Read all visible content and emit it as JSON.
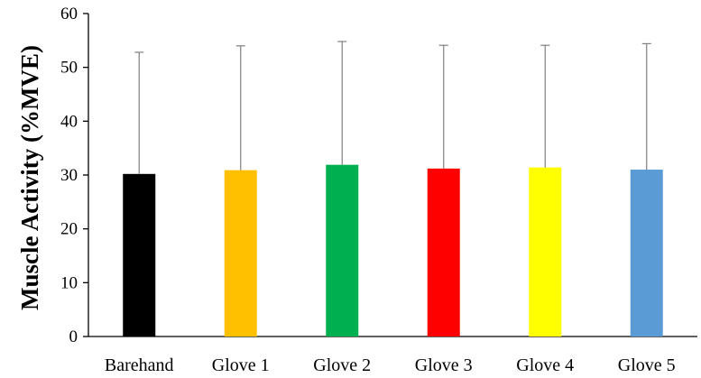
{
  "chart_data": {
    "type": "bar",
    "categories": [
      "Barehand",
      "Glove 1",
      "Glove 2",
      "Glove 3",
      "Glove 4",
      "Glove 5"
    ],
    "values": [
      30.2,
      30.9,
      31.9,
      31.2,
      31.4,
      31.0
    ],
    "error_upper": [
      52.8,
      54.0,
      54.8,
      54.1,
      54.1,
      54.4
    ],
    "colors": [
      "#000000",
      "#FFC000",
      "#00B050",
      "#FF0000",
      "#FFFF00",
      "#5B9BD5"
    ],
    "error_bar_color": "#7F7F7F",
    "title": "",
    "xlabel": "",
    "ylabel": "Muscle Activity (%MVE)",
    "ylim": [
      0,
      60
    ],
    "yticks": [
      0,
      10,
      20,
      30,
      40,
      50,
      60
    ],
    "grid": false,
    "legend": "none"
  }
}
